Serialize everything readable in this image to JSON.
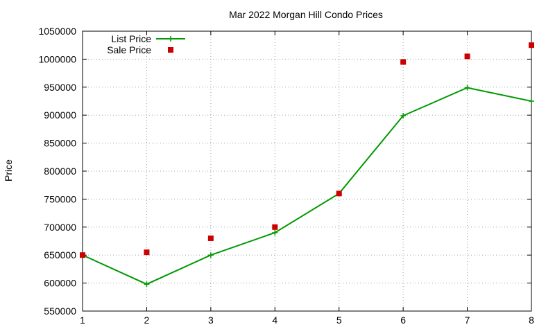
{
  "chart_data": {
    "type": "line",
    "title": "Mar 2022 Morgan Hill Condo Prices",
    "xlabel": "",
    "ylabel": "Price",
    "x": [
      1,
      2,
      3,
      4,
      5,
      6,
      7,
      8
    ],
    "xlim": [
      1,
      8
    ],
    "ylim": [
      550000,
      1050000
    ],
    "x_ticks": [
      "1",
      "2",
      "3",
      "4",
      "5",
      "6",
      "7",
      "8"
    ],
    "y_ticks": [
      "550000",
      "600000",
      "650000",
      "700000",
      "750000",
      "800000",
      "850000",
      "900000",
      "950000",
      "1000000",
      "1050000"
    ],
    "grid": true,
    "legend_position": "top-left",
    "series": [
      {
        "name": "List Price",
        "style": "line-with-plus-markers",
        "color": "#009900",
        "values": [
          650000,
          598000,
          650000,
          690000,
          760000,
          899000,
          949000,
          925000
        ]
      },
      {
        "name": "Sale Price",
        "style": "square-markers",
        "color": "#cc0000",
        "values": [
          650000,
          655000,
          680000,
          700000,
          760000,
          995000,
          1005000,
          1025000
        ]
      }
    ]
  }
}
